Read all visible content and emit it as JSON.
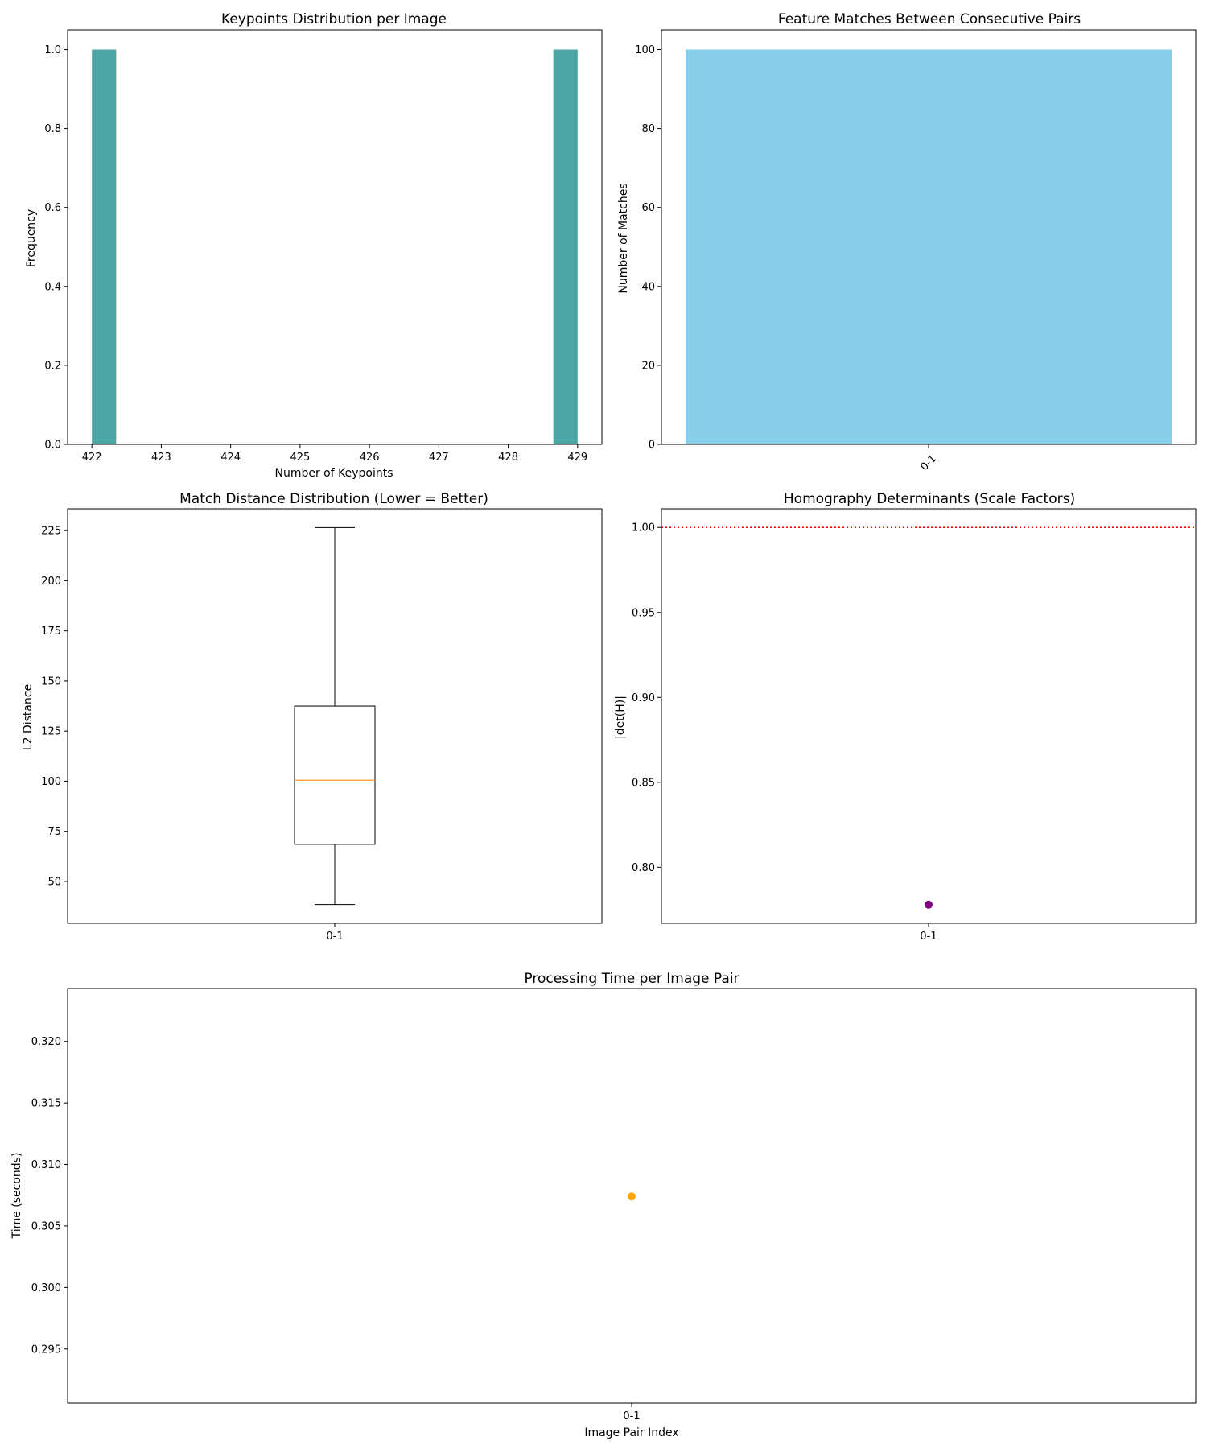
{
  "colors": {
    "hist_bar": "#4DA6A6",
    "match_bar": "#87CEEB",
    "box_median": "#FF8C1A",
    "det_point": "#800080",
    "ref_line": "#FF0000",
    "time_point": "#FFA500",
    "axes": "#000000"
  },
  "chart_data": [
    {
      "id": "hist",
      "type": "bar",
      "title": "Keypoints Distribution per Image",
      "xlabel": "Number of Keypoints",
      "ylabel": "Frequency",
      "xlim": [
        421.65,
        429.35
      ],
      "ylim": [
        0,
        1.05
      ],
      "xticks": [
        422,
        423,
        424,
        425,
        426,
        427,
        428,
        429
      ],
      "yticks": [
        0.0,
        0.2,
        0.4,
        0.6,
        0.8,
        1.0
      ],
      "ytick_decimals": 1,
      "bins": [
        {
          "start": 422.0,
          "end": 422.35,
          "value": 1
        },
        {
          "start": 428.65,
          "end": 429.0,
          "value": 1
        }
      ],
      "grid": false
    },
    {
      "id": "matches",
      "type": "bar",
      "title": "Feature Matches Between Consecutive Pairs",
      "xlabel": "",
      "ylabel": "Number of Matches",
      "categories": [
        "0-1"
      ],
      "values": [
        100
      ],
      "ylim": [
        0,
        105
      ],
      "yticks": [
        0,
        20,
        40,
        60,
        80,
        100
      ],
      "ytick_decimals": 0,
      "xtick_rotation": -45,
      "grid": false
    },
    {
      "id": "box",
      "type": "box",
      "title": "Match Distance Distribution (Lower = Better)",
      "xlabel": "",
      "ylabel": "L2 Distance",
      "categories": [
        "0-1"
      ],
      "stats": {
        "min": 38.5,
        "q1": 68.5,
        "median": 100.5,
        "q3": 137.5,
        "max": 226.5
      },
      "ylim": [
        29.1,
        235.9
      ],
      "yticks": [
        50,
        75,
        100,
        125,
        150,
        175,
        200,
        225
      ],
      "ytick_decimals": 0,
      "grid": false
    },
    {
      "id": "det",
      "type": "scatter",
      "title": "Homography Determinants (Scale Factors)",
      "xlabel": "",
      "ylabel": "|det(H)|",
      "categories": [
        "0-1"
      ],
      "values": [
        0.778
      ],
      "reference_line": 1.0,
      "ylim": [
        0.767,
        1.011
      ],
      "yticks": [
        0.8,
        0.85,
        0.9,
        0.95,
        1.0
      ],
      "ytick_decimals": 2,
      "grid": false
    },
    {
      "id": "time",
      "type": "scatter",
      "title": "Processing Time per Image Pair",
      "xlabel": "Image Pair Index",
      "ylabel": "Time (seconds)",
      "categories": [
        "0-1"
      ],
      "values": [
        0.3074
      ],
      "ylim": [
        0.2906,
        0.3243
      ],
      "yticks": [
        0.295,
        0.3,
        0.305,
        0.31,
        0.315,
        0.32
      ],
      "ytick_decimals": 3,
      "grid": false
    }
  ]
}
